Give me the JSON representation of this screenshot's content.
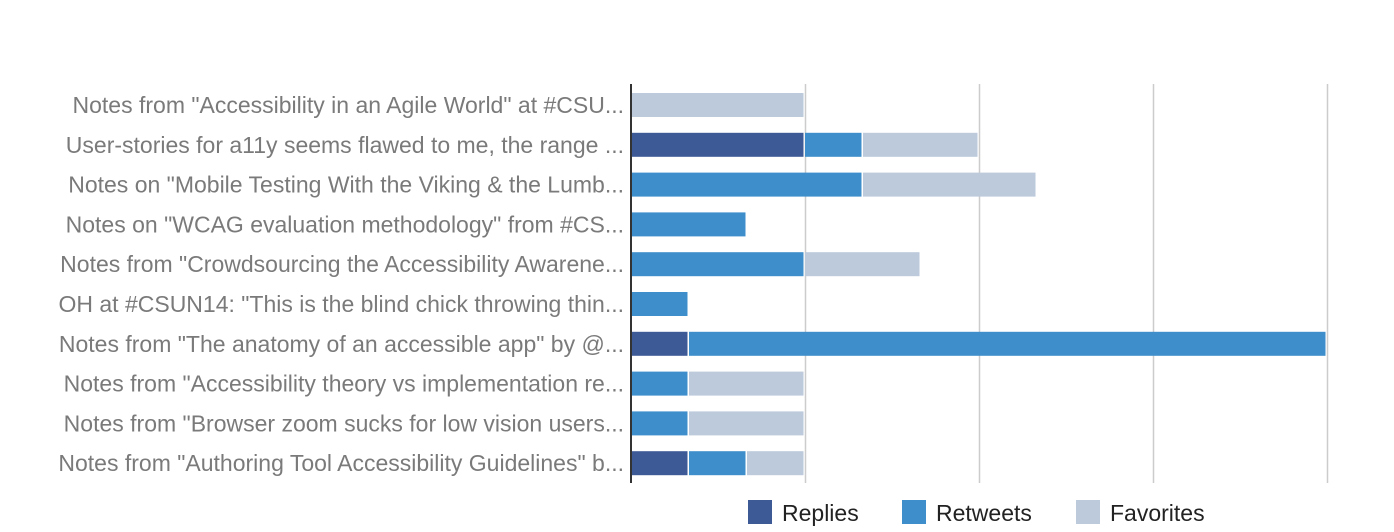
{
  "chart_data": {
    "type": "bar",
    "orientation": "horizontal",
    "stacked": true,
    "categories": [
      "Notes from \"Accessibility in an Agile World\" at #CSU...",
      "User-stories for a11y seems flawed to me, the range ...",
      "Notes on \"Mobile Testing With the Viking & the Lumb...",
      "Notes on \"WCAG evaluation methodology\" from #CS...",
      "Notes from \"Crowdsourcing the Accessibility Awarene...",
      "OH at #CSUN14: \"This is the blind chick throwing thin...",
      "Notes from \"The anatomy of an accessible app\" by @...",
      "Notes from \"Accessibility theory vs implementation re...",
      "Notes from \"Browser zoom sucks for low vision users...",
      "Notes from \"Authoring Tool Accessibility Guidelines\" b..."
    ],
    "series": [
      {
        "name": "Replies",
        "color": "#3d5a96",
        "values": [
          0,
          3,
          0,
          0,
          0,
          0,
          1,
          0,
          0,
          1
        ]
      },
      {
        "name": "Retweets",
        "color": "#3e8ecb",
        "values": [
          0,
          1,
          4,
          2,
          3,
          1,
          11,
          1,
          1,
          1
        ]
      },
      {
        "name": "Favorites",
        "color": "#bccadb",
        "values": [
          3,
          2,
          3,
          0,
          2,
          0,
          0,
          2,
          2,
          1
        ]
      }
    ],
    "xlim": [
      0,
      12
    ],
    "grid": true,
    "legend": "bottom"
  }
}
